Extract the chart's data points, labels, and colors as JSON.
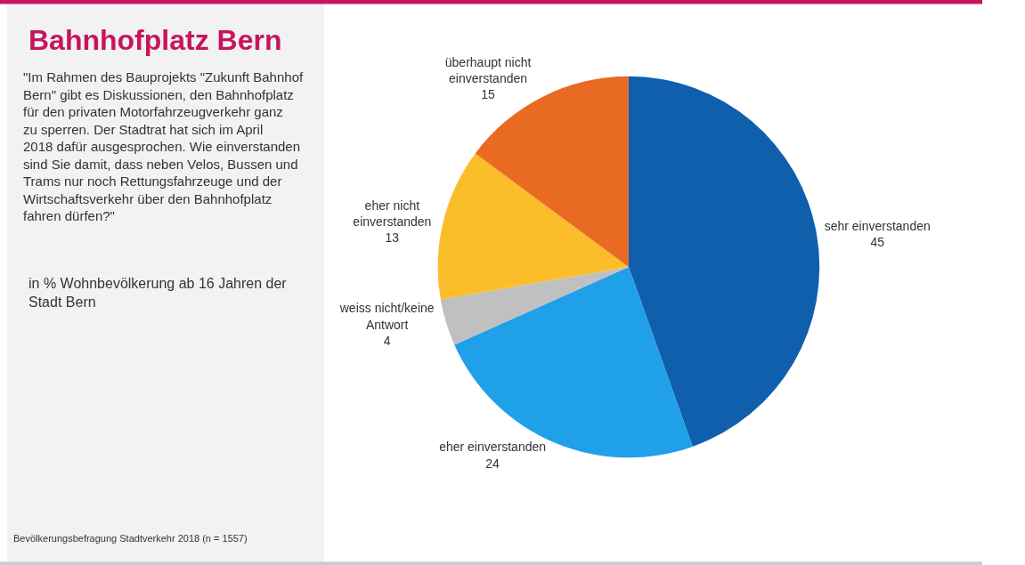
{
  "chart_data": {
    "type": "pie",
    "title": "Bahnhofplatz Bern",
    "subtitle": "\"Im Rahmen des Bauprojekts \"Zukunft Bahnhof Bern\" gibt es Diskussionen, den Bahnhofplatz für den privaten Motorfahrzeugverkehr ganz zu sperren. Der Stadtrat hat sich im April 2018 dafür ausgesprochen. Wie einverstanden sind Sie damit, dass neben Velos, Bussen und Trams nur noch Rettungsfahrzeuge und der Wirtschaftsverkehr über den Bahnhofplatz fahren dürfen?\"",
    "annotations": [
      "in % Wohnbevölkerung ab 16 Jahren der Stadt Bern",
      "Bevölkerungsbefragung Stadtverkehr 2018 (n = 1557)"
    ],
    "categories": [
      "sehr einverstanden",
      "eher einverstanden",
      "weiss nicht/keine Antwort",
      "eher nicht einverstanden",
      "überhaupt nicht einverstanden"
    ],
    "values": [
      45,
      24,
      4,
      13,
      15
    ],
    "colors": [
      "#0f5fad",
      "#1fa0e8",
      "#c0c0c0",
      "#fbbd2a",
      "#e96a23"
    ],
    "data_labels": true,
    "legend": false
  }
}
